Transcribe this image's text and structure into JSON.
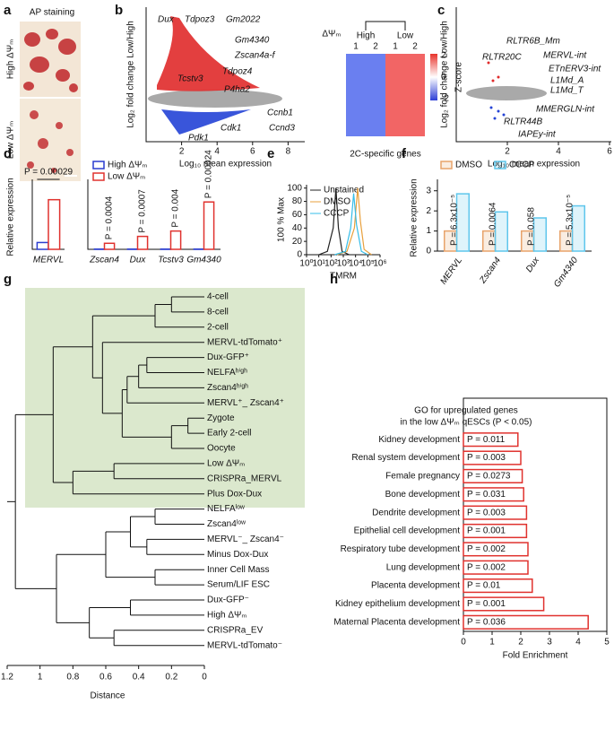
{
  "panel_labels": [
    "a",
    "b",
    "c",
    "d",
    "e",
    "f",
    "g",
    "h"
  ],
  "panel_a": {
    "title": "AP staining",
    "groups": [
      "High ΔΨₘ",
      "Low ΔΨₘ"
    ]
  },
  "panel_b": {
    "type": "scatter",
    "x_label": "Log₁₀ mean expression",
    "y_label": "Log₂ fold change Low/High",
    "xlim": [
      0,
      8
    ],
    "xticks": [
      2,
      4,
      6,
      8
    ],
    "genes": [
      "Dux",
      "Tdpoz3",
      "Gm2022",
      "Gm4340",
      "Zscan4a-f",
      "Tdpoz4",
      "Tcstv3",
      "P4ha2",
      "Ccnb1",
      "Ccnd3",
      "Cdk1",
      "Pdk1"
    ]
  },
  "heatmap": {
    "title": "ΔΨₘ",
    "groups": [
      "High",
      "Low"
    ],
    "replicates": [
      "1",
      "2",
      "1",
      "2"
    ],
    "colorbar_label": "Z-score",
    "colorbar_ticks": [
      2,
      0,
      -2
    ],
    "x_label": "2C-specific genes"
  },
  "panel_c": {
    "type": "scatter",
    "x_label": "Log₁₀ mean expression",
    "y_label": "Log₂ fold change Low/High",
    "xlim": [
      0,
      6
    ],
    "xticks": [
      2,
      4,
      6
    ],
    "labels": [
      "RLTR6B_Mm",
      "RLTR20C",
      "MERVL-int",
      "ETnERV3-int",
      "L1Md_A",
      "L1Md_T",
      "MMERGLN-int",
      "RLTR44B",
      "IAPEy-int"
    ]
  },
  "chart_data": [
    {
      "type": "bar",
      "y_label": "Relative expression",
      "categories": [
        "MERVL"
      ],
      "ylim": [
        0,
        9.5
      ],
      "series": [
        {
          "color": "#2a3ccf",
          "values": [
            1
          ]
        },
        {
          "color": "#e0322e",
          "values": [
            7.3
          ]
        }
      ],
      "annotations": [
        "P = 0.00029"
      ]
    },
    {
      "type": "bar",
      "categories": [
        "Zscan4",
        "Dux",
        "Tcstv3",
        "Gm4340"
      ],
      "ylim": [
        0,
        300
      ],
      "series": [
        {
          "name": "High ΔΨₘ",
          "color": "#2a3ccf",
          "values": [
            1,
            1,
            1,
            1
          ]
        },
        {
          "name": "Low ΔΨₘ",
          "color": "#e0322e",
          "values": [
            28,
            60,
            85,
            220
          ]
        }
      ],
      "annotations": [
        "P = 0.0004",
        "P = 0.0007",
        "P = 0.004",
        "P = 0.00024"
      ]
    },
    {
      "type": "line",
      "x_label": "TMRM",
      "y_label": "100 % Max",
      "xlog": true,
      "xlim": [
        1,
        1000000
      ],
      "xticks": [
        {
          "value": 1,
          "label": "10⁰"
        },
        {
          "value": 10,
          "label": "10¹"
        },
        {
          "value": 100,
          "label": "10²"
        },
        {
          "value": 1000,
          "label": "10³"
        },
        {
          "value": 10000,
          "label": "10⁴"
        },
        {
          "value": 100000,
          "label": "10⁵"
        },
        {
          "value": 1000000,
          "label": "10⁶"
        }
      ],
      "ylim": [
        0,
        105
      ],
      "yticks": [
        0,
        20,
        40,
        60,
        80,
        100
      ],
      "series": [
        {
          "name": "Unstained",
          "color": "#222222",
          "x": [
            10,
            50,
            150,
            250,
            400,
            800,
            3000
          ],
          "values": [
            0,
            5,
            40,
            100,
            40,
            5,
            0
          ]
        },
        {
          "name": "DMSO",
          "color": "#e8a03c",
          "x": [
            300,
            2000,
            8000,
            15000,
            25000,
            50000,
            200000
          ],
          "values": [
            0,
            5,
            40,
            100,
            50,
            8,
            0
          ]
        },
        {
          "name": "CCCP",
          "color": "#36bde8",
          "x": [
            200,
            1500,
            4000,
            7000,
            12000,
            30000,
            100000
          ],
          "values": [
            0,
            5,
            40,
            92,
            45,
            5,
            0
          ]
        }
      ]
    },
    {
      "type": "bar",
      "y_label": "Relative expression",
      "categories": [
        "MERVL",
        "Zscan4",
        "Dux",
        "Gm4340"
      ],
      "ylim": [
        0,
        3.3
      ],
      "yticks": [
        0,
        1,
        2,
        3
      ],
      "series": [
        {
          "name": "DMSO",
          "color": "#e8a36a",
          "values": [
            1,
            1,
            1,
            1
          ]
        },
        {
          "name": "CCCP",
          "color": "#5fc6ec",
          "values": [
            2.85,
            1.95,
            1.65,
            2.25
          ]
        }
      ],
      "annotations": [
        "P = 6.3x10⁻⁵",
        "P = 0.0064",
        "P = 0.058",
        "P = 5.3x10⁻⁵"
      ]
    },
    {
      "type": "barh",
      "title": [
        "GO for upregulated genes",
        "in the low ΔΨₘ qESCs (P < 0.05)"
      ],
      "x_label": "Fold Enrichment",
      "categories": [
        "Kidney development",
        "Renal system development",
        "Female pregnancy",
        "Bone development",
        "Dendrite development",
        "Epithelial cell development",
        "Respiratory tube development",
        "Lung development",
        "Placenta development",
        "Kidney epithelium development",
        "Maternal Placenta development"
      ],
      "values": [
        1.9,
        2.0,
        2.05,
        2.1,
        2.2,
        2.2,
        2.25,
        2.25,
        2.4,
        2.8,
        4.35
      ],
      "annotations": [
        "P = 0.011",
        "P = 0.003",
        "P = 0.0273",
        "P = 0.031",
        "P = 0.003",
        "P = 0.001",
        "P = 0.002",
        "P = 0.002",
        "P = 0.01",
        "P = 0.001",
        "P = 0.036"
      ],
      "color": "#e0322e",
      "label_colors": [
        "#111111",
        "#111111",
        "#111111",
        "#111111",
        "#111111",
        "#111111",
        "#111111",
        "#111111",
        "#e0322e",
        "#111111",
        "#e0322e"
      ],
      "xlim": [
        0,
        5
      ],
      "xticks": [
        0,
        1,
        2,
        3,
        4,
        5
      ]
    }
  ],
  "panel_g": {
    "x_label": "Distance",
    "xlim": [
      1.2,
      0
    ],
    "xticks": [
      1.2,
      1,
      0.8,
      0.6,
      0.4,
      0.2,
      0
    ],
    "leaves": [
      "4-cell",
      "8-cell",
      "2-cell",
      "MERVL-tdTomato⁺",
      "Dux-GFP⁺",
      "NELFAʰⁱᵍʰ",
      "Zscan4ʰⁱᵍʰ",
      "MERVL⁺_ Zscan4⁺",
      "Zygote",
      "Early 2-cell",
      "Oocyte",
      "Low ΔΨₘ",
      "CRISPRa_MERVL",
      "Plus Dox-Dux",
      "NELFAˡᵒʷ",
      "Zscan4ˡᵒʷ",
      "MERVL⁻_ Zscan4⁻",
      "Minus Dox-Dux",
      "Inner Cell Mass",
      "Serum/LIF ESC",
      "Dux-GFP⁻",
      "High ΔΨₘ",
      "CRISPRa_EV",
      "MERVL-tdTomato⁻"
    ],
    "leaf_colors": [
      "#111111",
      "#111111",
      "#111111",
      "#111111",
      "#111111",
      "#111111",
      "#111111",
      "#111111",
      "#111111",
      "#111111",
      "#111111",
      "#e0322e",
      "#111111",
      "#111111",
      "#111111",
      "#111111",
      "#111111",
      "#111111",
      "#111111",
      "#111111",
      "#111111",
      "#2a3ccf",
      "#111111",
      "#111111"
    ]
  }
}
